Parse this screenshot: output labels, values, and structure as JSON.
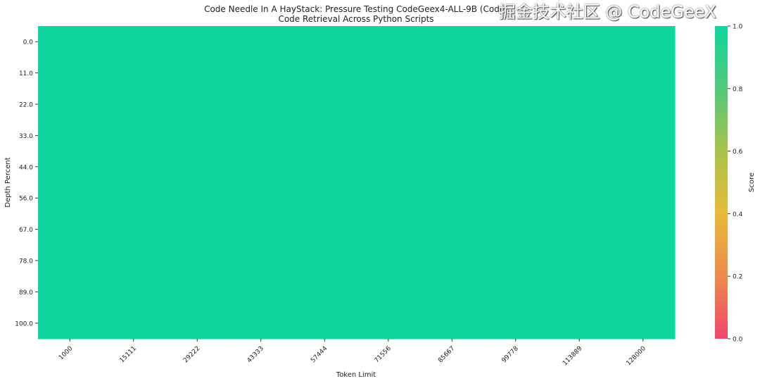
{
  "chart_data": {
    "type": "heatmap",
    "title": "Code Needle In A HayStack: Pressure Testing CodeGeex4-ALL-9B (Code)",
    "subtitle": "Code Retrieval Across Python Scripts",
    "xlabel": "Token Limit",
    "ylabel": "Depth Percent",
    "x_categories": [
      "1000",
      "15111",
      "29222",
      "43333",
      "57444",
      "71556",
      "85667",
      "99778",
      "113889",
      "128000"
    ],
    "y_categories": [
      "0.0",
      "11.0",
      "22.0",
      "33.0",
      "44.0",
      "56.0",
      "67.0",
      "78.0",
      "89.0",
      "100.0"
    ],
    "values": [
      [
        1,
        1,
        1,
        1,
        1,
        1,
        1,
        1,
        1,
        1
      ],
      [
        1,
        1,
        1,
        1,
        1,
        1,
        1,
        1,
        1,
        1
      ],
      [
        1,
        1,
        1,
        1,
        1,
        1,
        1,
        1,
        1,
        1
      ],
      [
        1,
        1,
        1,
        1,
        1,
        1,
        1,
        1,
        1,
        1
      ],
      [
        1,
        1,
        1,
        1,
        1,
        1,
        1,
        1,
        1,
        1
      ],
      [
        1,
        1,
        1,
        1,
        1,
        1,
        1,
        1,
        1,
        1
      ],
      [
        1,
        1,
        1,
        1,
        1,
        1,
        1,
        1,
        1,
        1
      ],
      [
        1,
        1,
        1,
        1,
        1,
        1,
        1,
        1,
        1,
        1
      ],
      [
        1,
        1,
        1,
        1,
        1,
        1,
        1,
        1,
        1,
        1
      ],
      [
        1,
        1,
        1,
        1,
        1,
        1,
        1,
        1,
        1,
        1
      ]
    ],
    "colorbar": {
      "label": "Score",
      "range": [
        0,
        1
      ],
      "ticks": [
        "0.0",
        "0.2",
        "0.4",
        "0.6",
        "0.8",
        "1.0"
      ],
      "colors": [
        "#f0476a",
        "#ec8a4a",
        "#e8b93a",
        "#a8c34a",
        "#52c97a",
        "#0fd69e"
      ]
    }
  },
  "watermark": "掘金技术社区 @ CodeGeeX"
}
